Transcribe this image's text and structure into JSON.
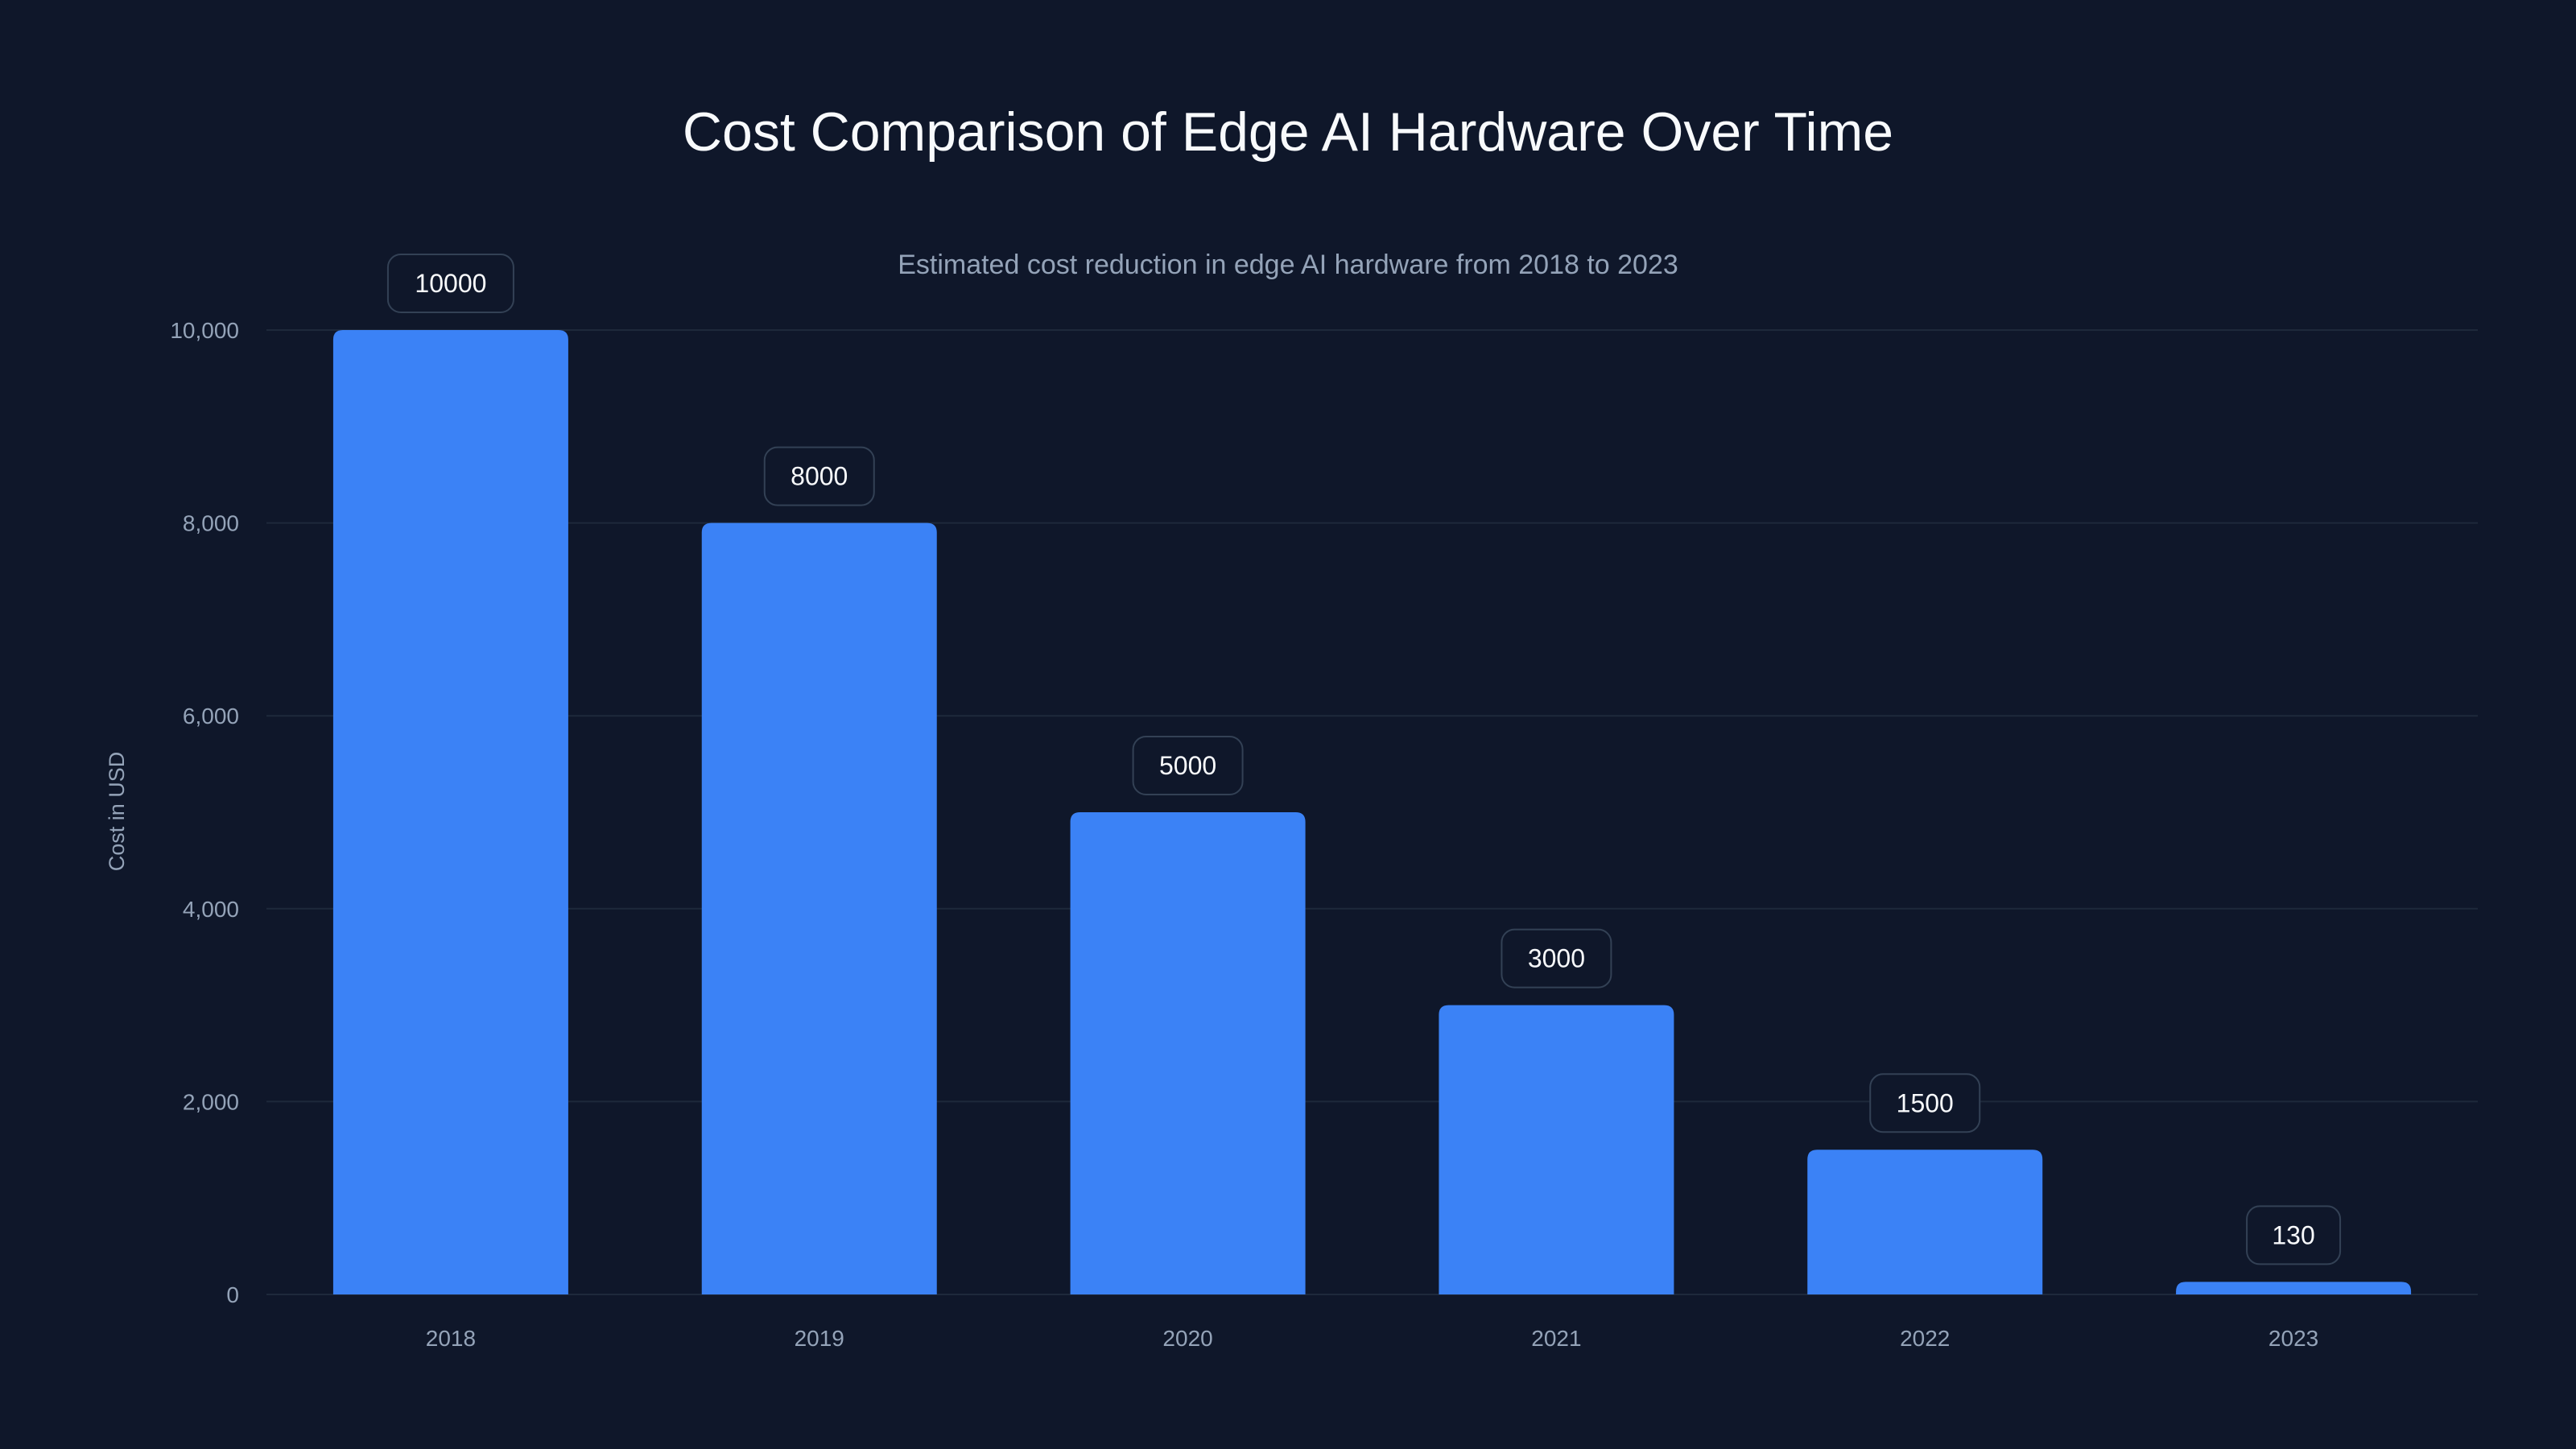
{
  "chart_data": {
    "type": "bar",
    "title": "Cost Comparison of Edge AI Hardware Over Time",
    "subtitle": "Estimated cost reduction in edge AI hardware from 2018 to 2023",
    "xlabel": "",
    "ylabel": "Cost in USD",
    "categories": [
      "2018",
      "2019",
      "2020",
      "2021",
      "2022",
      "2023"
    ],
    "values": [
      10000,
      8000,
      5000,
      3000,
      1500,
      130
    ],
    "data_labels": [
      "10000",
      "8000",
      "5000",
      "3000",
      "1500",
      "130"
    ],
    "ylim": [
      0,
      10000
    ],
    "yticks": [
      0,
      2000,
      4000,
      6000,
      8000,
      10000
    ],
    "ytick_labels": [
      "0",
      "2,000",
      "4,000",
      "6,000",
      "8,000",
      "10,000"
    ],
    "grid": true,
    "legend": "none",
    "colors": {
      "background": "#0f172a",
      "bar": "#3b82f6",
      "grid": "#1e293b",
      "muted_text": "#94a3b8",
      "label_border": "#334155"
    }
  }
}
